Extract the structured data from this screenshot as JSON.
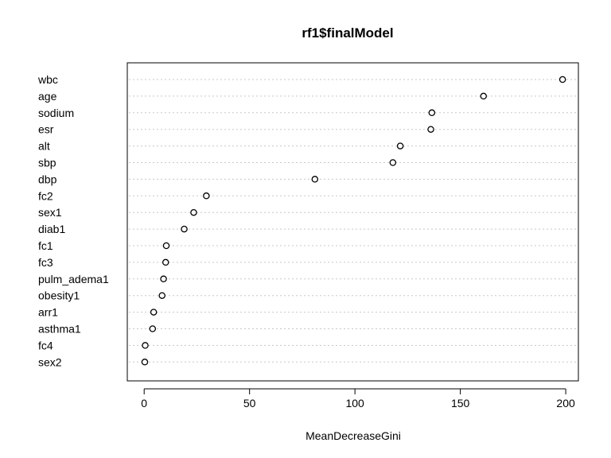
{
  "chart_data": {
    "type": "scatter",
    "title": "rf1$finalModel",
    "xlabel": "MeanDecreaseGini",
    "ylabel": "",
    "xlim": [
      -8,
      206
    ],
    "xticks": [
      0,
      50,
      100,
      150,
      200
    ],
    "grid": "horizontal dotted",
    "categories": [
      "wbc",
      "age",
      "sodium",
      "esr",
      "alt",
      "sbp",
      "dbp",
      "fc2",
      "sex1",
      "diab1",
      "fc1",
      "fc3",
      "pulm_adema1",
      "obesity1",
      "arr1",
      "asthma1",
      "fc4",
      "sex2"
    ],
    "values": [
      198.5,
      161.0,
      136.5,
      136.0,
      121.5,
      118.0,
      81.0,
      29.5,
      23.5,
      19.0,
      10.5,
      10.2,
      9.2,
      8.5,
      4.5,
      4.0,
      0.5,
      0.3
    ]
  }
}
